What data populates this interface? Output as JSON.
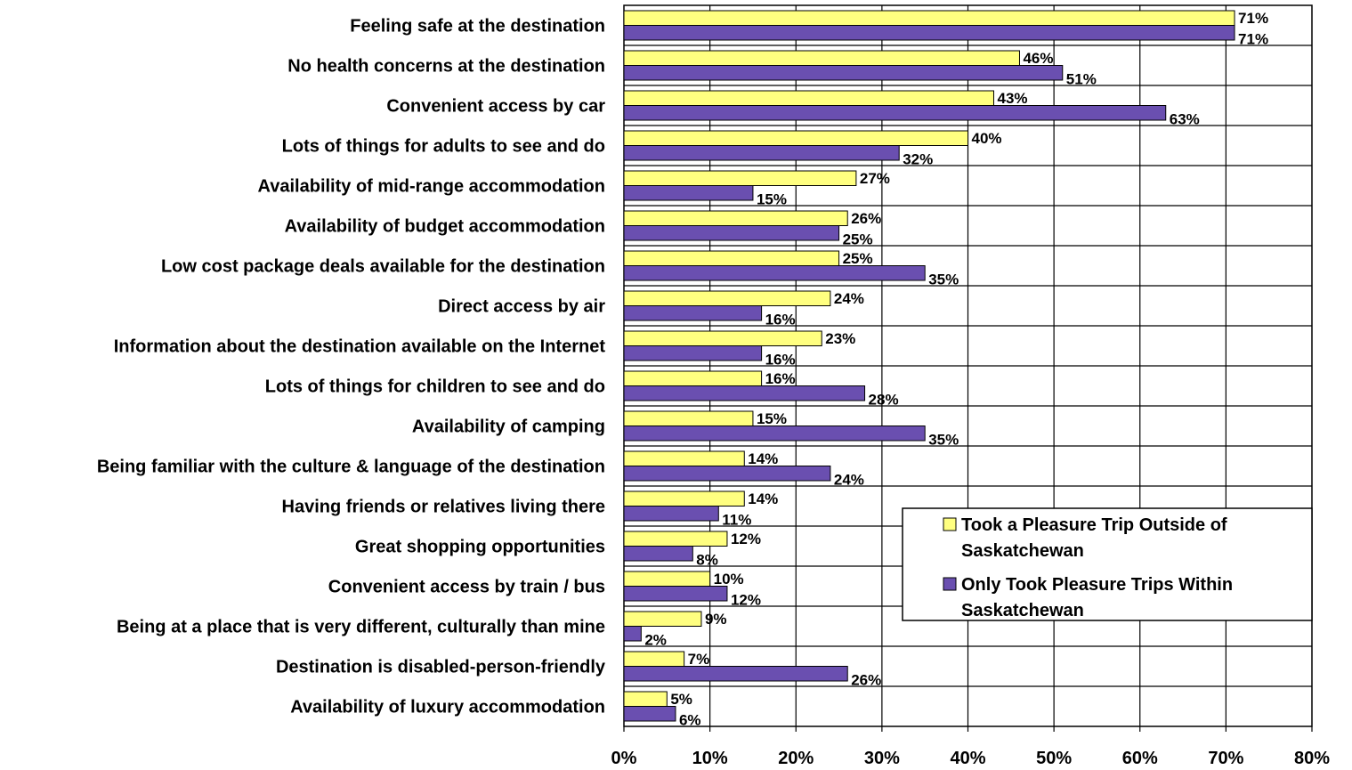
{
  "chart_data": {
    "type": "bar",
    "orientation": "horizontal",
    "categories": [
      "Feeling safe at the destination",
      "No health concerns at the destination",
      "Convenient access by car",
      "Lots of things for adults to see and do",
      "Availability of mid-range accommodation",
      "Availability of budget accommodation",
      "Low cost package deals available for the destination",
      "Direct access by air",
      "Information about the destination available on the Internet",
      "Lots of things for children to see and do",
      "Availability of camping",
      "Being familiar with the culture & language of the destination",
      "Having friends or relatives living there",
      "Great shopping opportunities",
      "Convenient access by train / bus",
      "Being at a place that is very different, culturally than mine",
      "Destination is disabled-person-friendly",
      "Availability of luxury accommodation"
    ],
    "series": [
      {
        "name": "Took a Pleasure Trip Outside of Saskatchewan",
        "color": "#FFFF80",
        "values": [
          71,
          46,
          43,
          40,
          27,
          26,
          25,
          24,
          23,
          16,
          15,
          14,
          14,
          12,
          10,
          9,
          7,
          5
        ],
        "labels": [
          "71%",
          "46%",
          "43%",
          "40%",
          "27%",
          "26%",
          "25%",
          "24%",
          "23%",
          "16%",
          "15%",
          "14%",
          "14%",
          "12%",
          "10%",
          "9%",
          "7%",
          "5%"
        ]
      },
      {
        "name": "Only Took Pleasure Trips Within Saskatchewan",
        "color": "#6A4FB0",
        "values": [
          71,
          51,
          63,
          32,
          15,
          25,
          35,
          16,
          16,
          28,
          35,
          24,
          11,
          8,
          12,
          2,
          26,
          6
        ],
        "labels": [
          "71%",
          "51%",
          "63%",
          "32%",
          "15%",
          "25%",
          "35%",
          "16%",
          "16%",
          "28%",
          "35%",
          "24%",
          "11%",
          "8%",
          "12%",
          "2%",
          "26%",
          "6%"
        ]
      }
    ],
    "xlim": [
      0,
      80
    ],
    "xticks": [
      "0%",
      "10%",
      "20%",
      "30%",
      "40%",
      "50%",
      "60%",
      "70%",
      "80%"
    ],
    "grid": true,
    "legend_position": "lower-right inside plot"
  }
}
